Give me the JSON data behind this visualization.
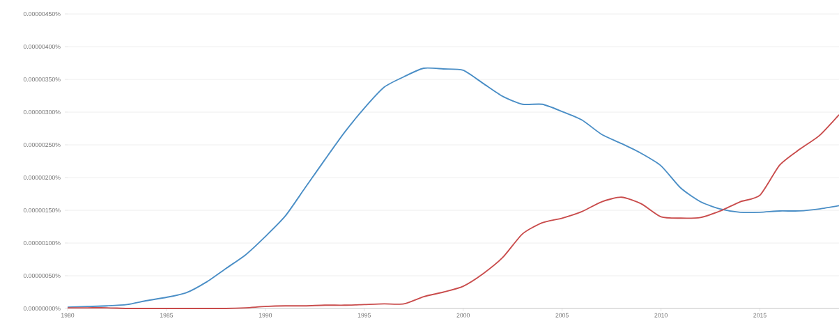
{
  "chart_data": {
    "type": "line",
    "x": [
      1980,
      1981,
      1982,
      1983,
      1984,
      1985,
      1986,
      1987,
      1988,
      1989,
      1990,
      1991,
      1992,
      1993,
      1994,
      1995,
      1996,
      1997,
      1998,
      1999,
      2000,
      2001,
      2002,
      2003,
      2004,
      2005,
      2006,
      2007,
      2008,
      2009,
      2010,
      2011,
      2012,
      2013,
      2014,
      2015,
      2016,
      2017,
      2018,
      2019
    ],
    "series": [
      {
        "color": "#4a8ec6",
        "values": [
          2e-08,
          3e-08,
          4e-08,
          6e-08,
          1.2e-07,
          1.7e-07,
          2.4e-07,
          4e-07,
          6.1e-07,
          8.2e-07,
          1.1e-06,
          1.41e-06,
          1.84e-06,
          2.27e-06,
          2.69e-06,
          3.06e-06,
          3.38e-06,
          3.54e-06,
          3.67e-06,
          3.66e-06,
          3.64e-06,
          3.44e-06,
          3.24e-06,
          3.12e-06,
          3.12e-06,
          3.01e-06,
          2.88e-06,
          2.66e-06,
          2.52e-06,
          2.37e-06,
          2.18e-06,
          1.84e-06,
          1.63e-06,
          1.52e-06,
          1.47e-06,
          1.47e-06,
          1.49e-06,
          1.49e-06,
          1.52e-06,
          1.57e-06
        ]
      },
      {
        "color": "#c94c4c",
        "values": [
          1e-08,
          1e-08,
          1e-08,
          0.0,
          0.0,
          0.0,
          0.0,
          0.0,
          0.0,
          1e-08,
          3e-08,
          4e-08,
          4e-08,
          5e-08,
          5e-08,
          6e-08,
          7e-08,
          7e-08,
          1.8e-07,
          2.5e-07,
          3.4e-07,
          5.3e-07,
          7.8e-07,
          1.14e-06,
          1.31e-06,
          1.38e-06,
          1.48e-06,
          1.63e-06,
          1.7e-06,
          1.6e-06,
          1.4e-06,
          1.38e-06,
          1.39e-06,
          1.49e-06,
          1.63e-06,
          1.73e-06,
          2.19e-06,
          2.43e-06,
          2.64e-06,
          2.96e-06
        ]
      }
    ],
    "xlim": [
      1980,
      2019
    ],
    "ylim": [
      0,
      4.5e-06
    ],
    "xticks": [
      1980,
      1985,
      1990,
      1995,
      2000,
      2005,
      2010,
      2015
    ],
    "yticks": [
      {
        "value": 0,
        "label": "0.00000000%"
      },
      {
        "value": 5e-07,
        "label": "0.00000050%"
      },
      {
        "value": 1e-06,
        "label": "0.00000100%"
      },
      {
        "value": 1.5e-06,
        "label": "0.00000150%"
      },
      {
        "value": 2e-06,
        "label": "0.00000200%"
      },
      {
        "value": 2.5e-06,
        "label": "0.00000250%"
      },
      {
        "value": 3e-06,
        "label": "0.00000300%"
      },
      {
        "value": 3.5e-06,
        "label": "0.00000350%"
      },
      {
        "value": 4e-06,
        "label": "0.00000400%"
      },
      {
        "value": 4.5e-06,
        "label": "0.00000450%"
      }
    ],
    "grid": "y"
  }
}
